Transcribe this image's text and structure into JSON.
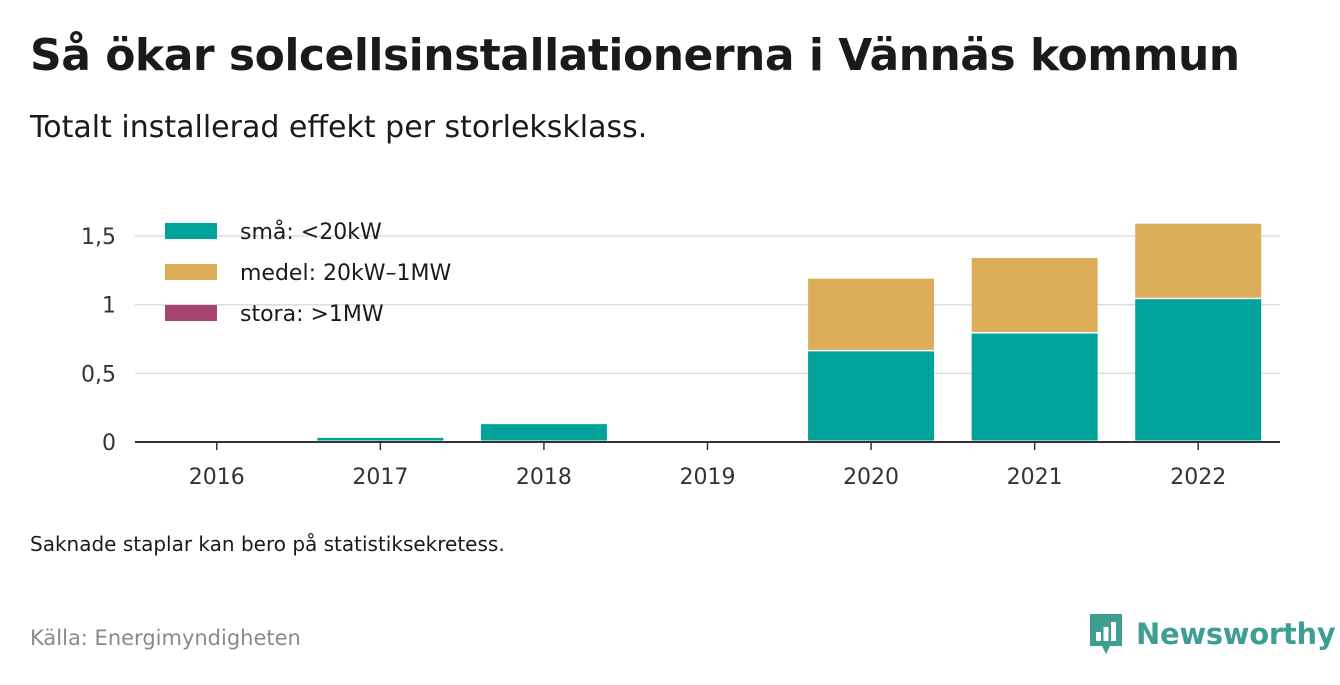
{
  "header": {
    "title": "Så ökar solcellsinstallationerna i Vännäs kommun",
    "subtitle": "Totalt installerad effekt per storleksklass."
  },
  "footer": {
    "note": "Saknade staplar kan bero på statistiksekretess.",
    "source": "Källa: Energimyndigheten",
    "brand": "Newsworthy",
    "brand_icon": "newsworthy-logo-icon"
  },
  "chart_data": {
    "type": "bar",
    "stacked": true,
    "categories": [
      "2016",
      "2017",
      "2018",
      "2019",
      "2020",
      "2021",
      "2022"
    ],
    "series": [
      {
        "name": "små: <20kW",
        "color": "#00a39a",
        "values": [
          0,
          0.03,
          0.13,
          0,
          0.66,
          0.79,
          1.04
        ]
      },
      {
        "name": "medel: 20kW–1MW",
        "color": "#dcae5a",
        "values": [
          0,
          0,
          0,
          0,
          0.53,
          0.55,
          0.55
        ]
      },
      {
        "name": "stora: >1MW",
        "color": "#a6436e",
        "values": [
          0,
          0,
          0,
          0,
          0,
          0,
          0
        ]
      }
    ],
    "yticks": [
      0,
      0.5,
      1,
      1.5
    ],
    "ytick_labels": [
      "0",
      "0,5",
      "1",
      "1,5"
    ],
    "ylim": [
      0,
      1.6
    ],
    "grid": true,
    "legend_position": "top-left"
  }
}
